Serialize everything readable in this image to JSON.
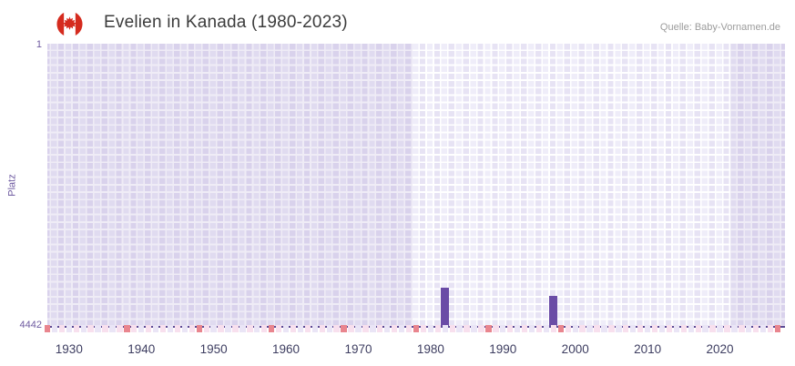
{
  "header": {
    "title": "Evelien in Kanada (1980-2023)",
    "source": "Quelle: Baby-Vornamen.de"
  },
  "chart_data": {
    "type": "bar",
    "title": "Evelien in Kanada (1980-2023)",
    "ylabel": "Platz",
    "y_axis": {
      "min": 1,
      "max": 4442,
      "inverted": true,
      "ticks": [
        "1",
        "4442"
      ]
    },
    "x_axis": {
      "min": 1927,
      "max": 2029,
      "ticks": [
        1930,
        1940,
        1950,
        1960,
        1970,
        1980,
        1990,
        2000,
        2010,
        2020
      ]
    },
    "series": [
      {
        "name": "Platz",
        "color": "#6a4ca6",
        "points": [
          {
            "year": 1982,
            "rank": 3860
          },
          {
            "year": 1997,
            "rank": 3990
          }
        ]
      }
    ],
    "no_data_regions": [
      {
        "from": 1927,
        "to": 1978
      },
      {
        "from": 2022,
        "to": 2029
      }
    ],
    "timeline_strip": {
      "start_year": 1927,
      "end_year": 2028,
      "alternating_colors": [
        "#f8e0ee",
        "#eae5f6"
      ],
      "accent_color": "#e9858e",
      "accent_years": [
        1927,
        1938,
        1948,
        1958,
        1968,
        1978,
        1988,
        1998,
        2028
      ]
    },
    "colors": {
      "bar": "#6a4ca6",
      "baseline": "#5c4a94",
      "grid_cell_a": "#e7e3f4",
      "grid_cell_b": "#efedf9",
      "no_data_tint": "rgba(102,72,162,0.10)",
      "x_tick_text": "#3d3d60",
      "y_tick_text": "#6e5aa0"
    }
  }
}
